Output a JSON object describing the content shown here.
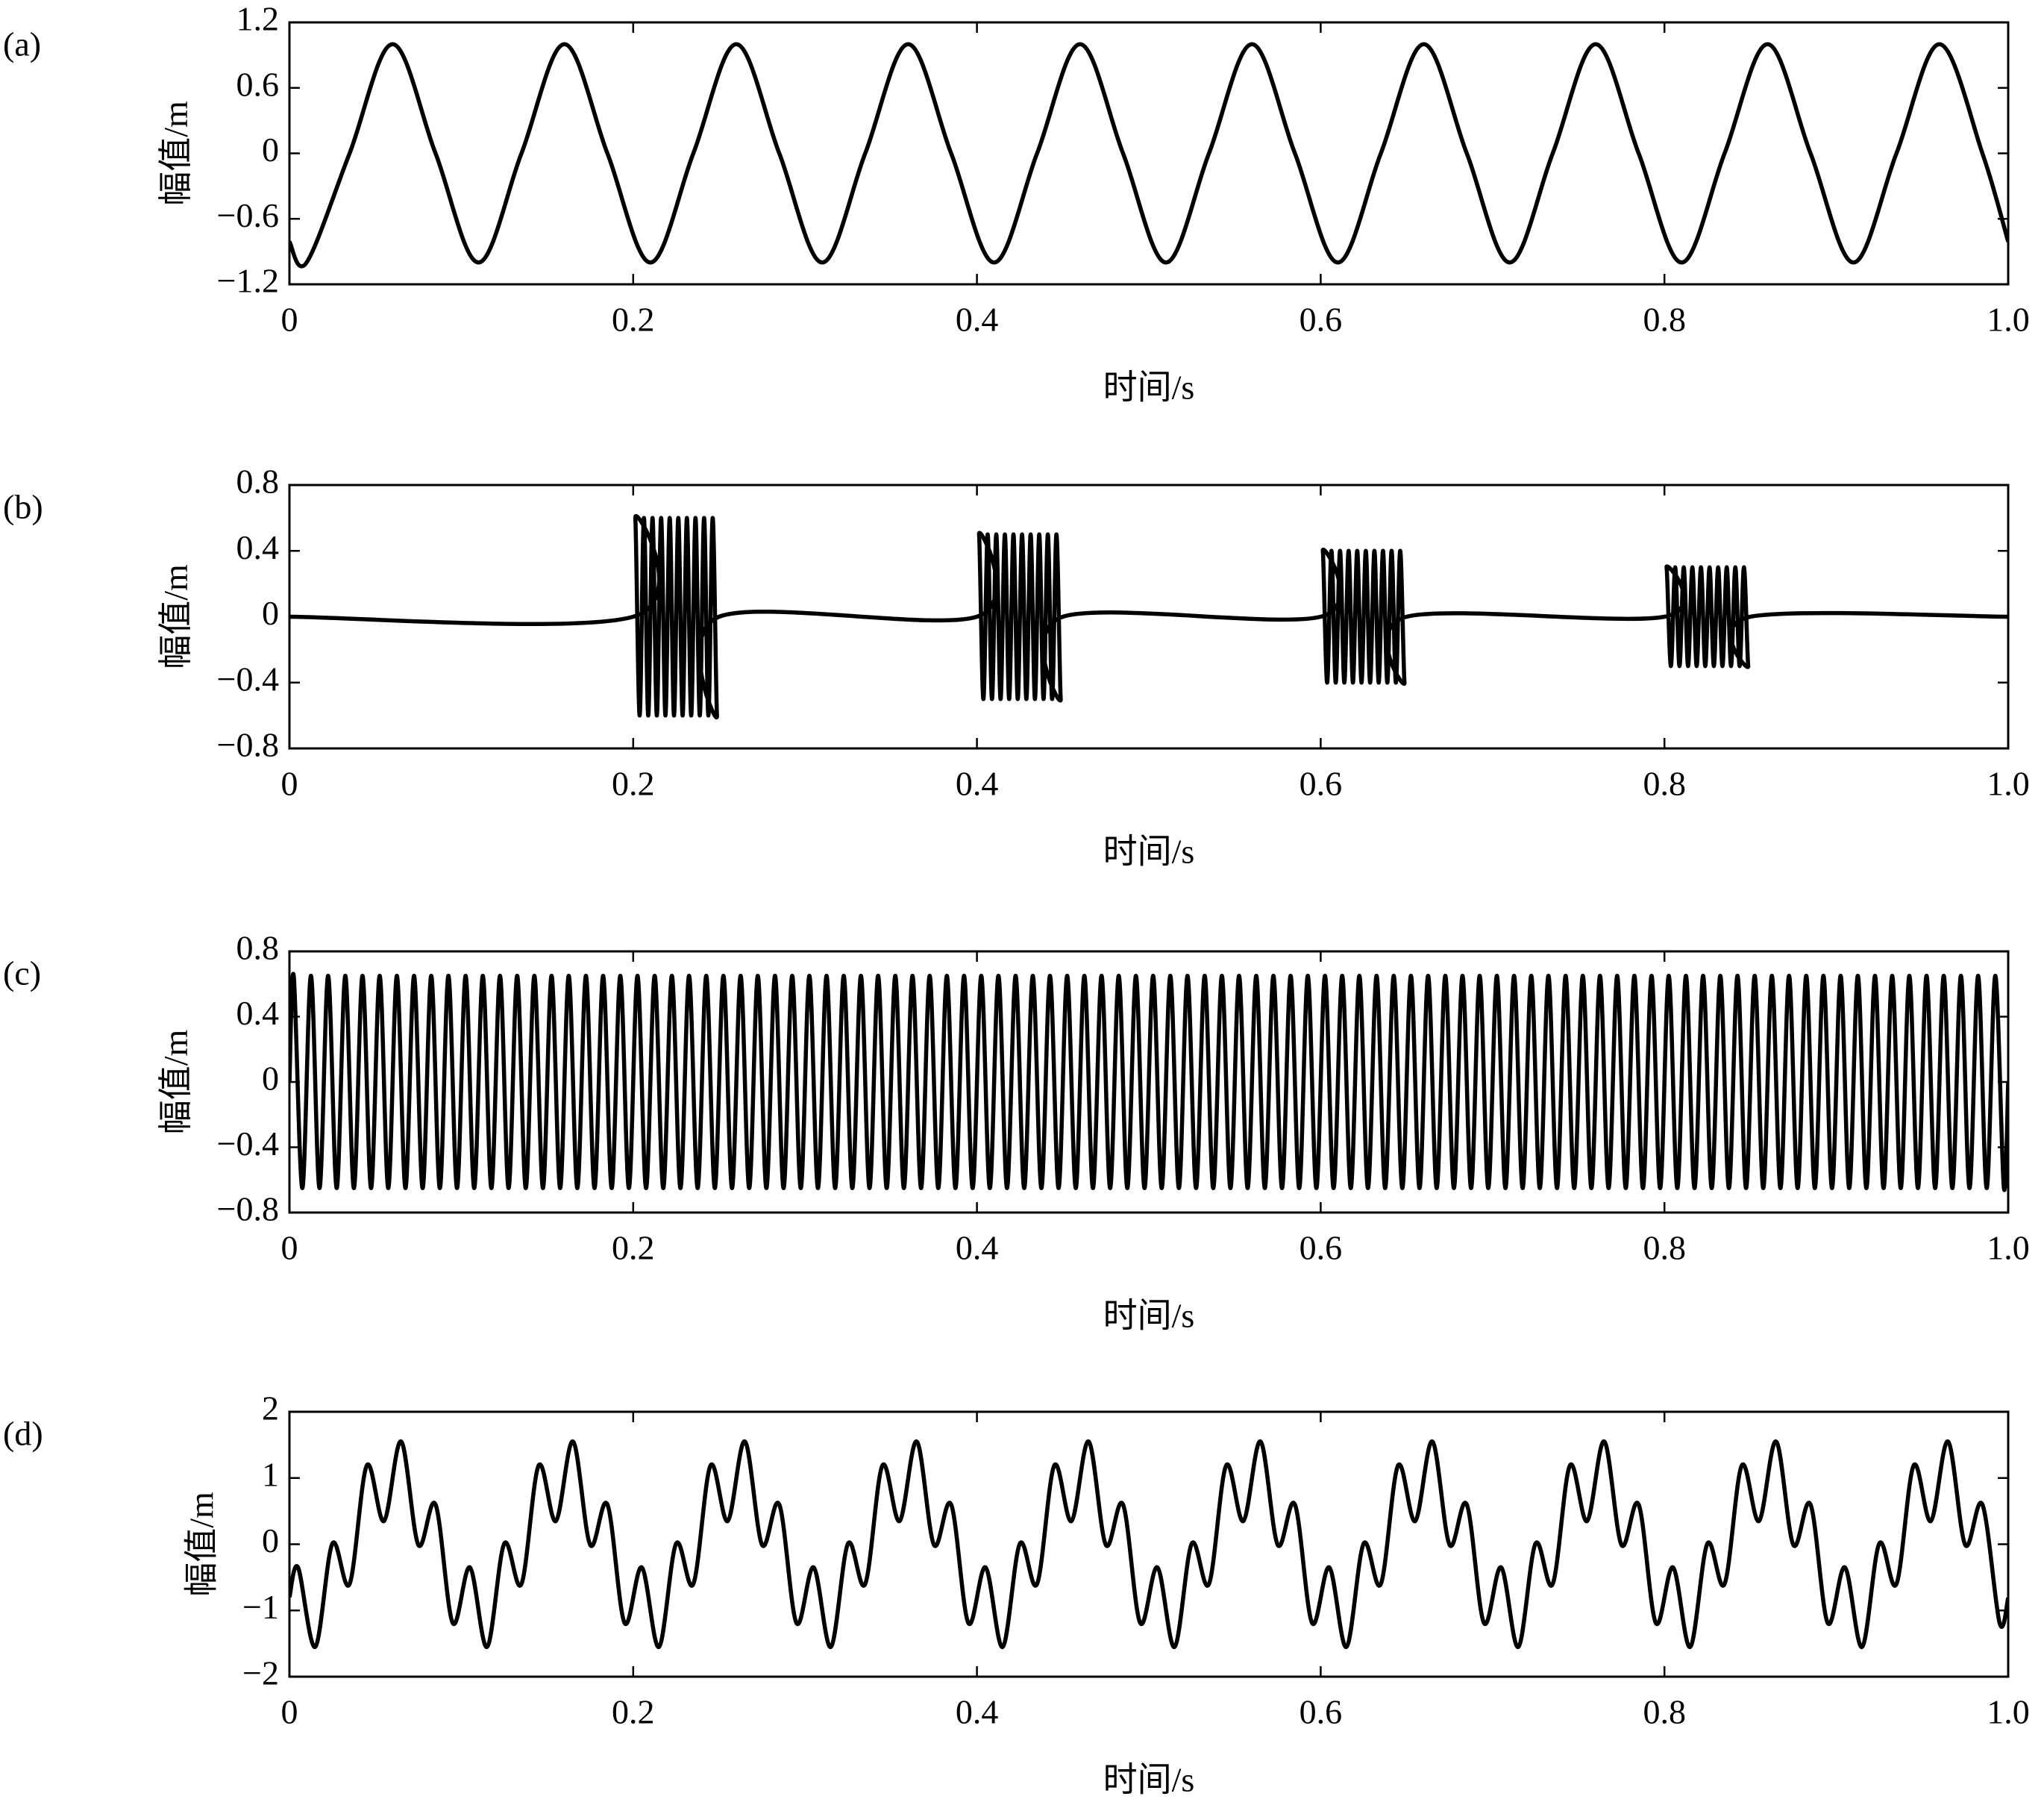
{
  "chart_data": [
    {
      "type": "line",
      "label": "(a)",
      "xlabel": "时间/s",
      "ylabel": "幅值/m",
      "color": "#000000",
      "xlim": [
        0,
        1
      ],
      "xticks": [
        0,
        0.2,
        0.4,
        0.6,
        0.8,
        {
          "value": 1,
          "label": "1.0"
        }
      ],
      "ylim": [
        -1.2,
        1.2
      ],
      "yticks": [
        {
          "value": -1.2,
          "label": "−1.2"
        },
        {
          "value": -0.6,
          "label": "−0.6"
        },
        0,
        0.6,
        1.2
      ],
      "x": [
        0,
        0.01,
        0.035,
        0.06,
        0.085,
        0.11,
        0.135,
        0.16,
        0.185,
        0.21,
        0.235,
        0.26,
        0.285,
        0.31,
        0.335,
        0.36,
        0.385,
        0.41,
        0.435,
        0.46,
        0.485,
        0.51,
        0.535,
        0.56,
        0.585,
        0.61,
        0.635,
        0.66,
        0.685,
        0.71,
        0.735,
        0.76,
        0.785,
        0.81,
        0.835,
        0.86,
        0.885,
        0.91,
        0.935,
        0.96,
        0.985,
        1
      ],
      "values": [
        -0.81,
        -1,
        0,
        1,
        0,
        -1,
        0,
        1,
        0,
        -1,
        0,
        1,
        0,
        -1,
        0,
        1,
        0,
        -1,
        0,
        1,
        0,
        -1,
        0,
        1,
        0,
        -1,
        0,
        1,
        0,
        -1,
        0,
        1,
        0,
        -1,
        0,
        1,
        0,
        -1,
        0,
        1,
        0,
        -0.81
      ]
    },
    {
      "type": "line",
      "label": "(b)",
      "xlabel": "时间/s",
      "ylabel": "幅值/m",
      "color": "#000000",
      "xlim": [
        0,
        1
      ],
      "xticks": [
        0,
        0.2,
        0.4,
        0.6,
        0.8,
        {
          "value": 1,
          "label": "1.0"
        }
      ],
      "ylim": [
        -0.8,
        0.8
      ],
      "yticks": [
        {
          "value": -0.8,
          "label": "−0.8"
        },
        {
          "value": -0.4,
          "label": "−0.4"
        },
        0,
        0.4,
        0.8
      ],
      "x": [
        0,
        0.2,
        0.20125,
        0.20375,
        0.20625,
        0.20875,
        0.21125,
        0.21375,
        0.21625,
        0.21875,
        0.22125,
        0.22375,
        0.22625,
        0.22875,
        0.23125,
        0.23375,
        0.23625,
        0.23875,
        0.24125,
        0.24375,
        0.24625,
        0.24875,
        0.25,
        0.4,
        0.40125,
        0.40375,
        0.40625,
        0.40875,
        0.41125,
        0.41375,
        0.41625,
        0.41875,
        0.42125,
        0.42375,
        0.42625,
        0.42875,
        0.43125,
        0.43375,
        0.43625,
        0.43875,
        0.44125,
        0.44375,
        0.44625,
        0.44875,
        0.45,
        0.6,
        0.60125,
        0.60375,
        0.60625,
        0.60875,
        0.61125,
        0.61375,
        0.61625,
        0.61875,
        0.62125,
        0.62375,
        0.62625,
        0.62875,
        0.63125,
        0.63375,
        0.63625,
        0.63875,
        0.64125,
        0.64375,
        0.64625,
        0.64875,
        0.65,
        0.8,
        0.80125,
        0.80375,
        0.80625,
        0.80875,
        0.81125,
        0.81375,
        0.81625,
        0.81875,
        0.82125,
        0.82375,
        0.82625,
        0.82875,
        0.83125,
        0.83375,
        0.83625,
        0.83875,
        0.84125,
        0.84375,
        0.84625,
        0.84875,
        0.85,
        1
      ],
      "values": [
        0,
        0,
        0.6,
        -0.6,
        0.6,
        -0.6,
        0.6,
        -0.6,
        0.6,
        -0.6,
        0.6,
        -0.6,
        0.6,
        -0.6,
        0.6,
        -0.6,
        0.6,
        -0.6,
        0.6,
        -0.6,
        0.6,
        -0.6,
        0,
        0,
        0.5,
        -0.5,
        0.5,
        -0.5,
        0.5,
        -0.5,
        0.5,
        -0.5,
        0.5,
        -0.5,
        0.5,
        -0.5,
        0.5,
        -0.5,
        0.5,
        -0.5,
        0.5,
        -0.5,
        0.5,
        -0.5,
        0,
        0,
        0.4,
        -0.4,
        0.4,
        -0.4,
        0.4,
        -0.4,
        0.4,
        -0.4,
        0.4,
        -0.4,
        0.4,
        -0.4,
        0.4,
        -0.4,
        0.4,
        -0.4,
        0.4,
        -0.4,
        0.4,
        -0.4,
        0,
        0,
        0.3,
        -0.3,
        0.3,
        -0.3,
        0.3,
        -0.3,
        0.3,
        -0.3,
        0.3,
        -0.3,
        0.3,
        -0.3,
        0.3,
        -0.3,
        0.3,
        -0.3,
        0.3,
        -0.3,
        0.3,
        -0.3,
        0,
        0
      ]
    },
    {
      "type": "line",
      "label": "(c)",
      "xlabel": "时间/s",
      "ylabel": "幅值/m",
      "color": "#000000",
      "xlim": [
        0,
        1
      ],
      "xticks": [
        0,
        0.2,
        0.4,
        0.6,
        0.8,
        {
          "value": 1,
          "label": "1.0"
        }
      ],
      "ylim": [
        -0.8,
        0.8
      ],
      "yticks": [
        {
          "value": -0.8,
          "label": "−0.8"
        },
        {
          "value": -0.4,
          "label": "−0.4"
        },
        0,
        0.4,
        0.8
      ],
      "x": [
        0,
        0.0025,
        0.0075,
        0.0125,
        0.0175,
        0.0225,
        0.0275,
        0.0325,
        0.0375,
        0.0425,
        0.0475,
        0.0525,
        0.0575,
        0.0625,
        0.0675,
        0.0725,
        0.0775,
        0.0825,
        0.0875,
        0.0925,
        0.0975,
        0.1025,
        0.1075,
        0.1125,
        0.1175,
        0.1225,
        0.1275,
        0.1325,
        0.1375,
        0.1425,
        0.1475,
        0.1525,
        0.1575,
        0.1625,
        0.1675,
        0.1725,
        0.1775,
        0.1825,
        0.1875,
        0.1925,
        0.1975,
        0.2025,
        0.2075,
        0.2125,
        0.2175,
        0.2225,
        0.2275,
        0.2325,
        0.2375,
        0.2425,
        0.2475,
        0.2525,
        0.2575,
        0.2625,
        0.2675,
        0.2725,
        0.2775,
        0.2825,
        0.2875,
        0.2925,
        0.2975,
        0.3025,
        0.3075,
        0.3125,
        0.3175,
        0.3225,
        0.3275,
        0.3325,
        0.3375,
        0.3425,
        0.3475,
        0.3525,
        0.3575,
        0.3625,
        0.3675,
        0.3725,
        0.3775,
        0.3825,
        0.3875,
        0.3925,
        0.3975,
        0.4025,
        0.4075,
        0.4125,
        0.4175,
        0.4225,
        0.4275,
        0.4325,
        0.4375,
        0.4425,
        0.4475,
        0.4525,
        0.4575,
        0.4625,
        0.4675,
        0.4725,
        0.4775,
        0.4825,
        0.4875,
        0.4925,
        0.4975,
        0.5025,
        0.5075,
        0.5125,
        0.5175,
        0.5225,
        0.5275,
        0.5325,
        0.5375,
        0.5425,
        0.5475,
        0.5525,
        0.5575,
        0.5625,
        0.5675,
        0.5725,
        0.5775,
        0.5825,
        0.5875,
        0.5925,
        0.5975,
        0.6025,
        0.6075,
        0.6125,
        0.6175,
        0.6225,
        0.6275,
        0.6325,
        0.6375,
        0.6425,
        0.6475,
        0.6525,
        0.6575,
        0.6625,
        0.6675,
        0.6725,
        0.6775,
        0.6825,
        0.6875,
        0.6925,
        0.6975,
        0.7025,
        0.7075,
        0.7125,
        0.7175,
        0.7225,
        0.7275,
        0.7325,
        0.7375,
        0.7425,
        0.7475,
        0.7525,
        0.7575,
        0.7625,
        0.7675,
        0.7725,
        0.7775,
        0.7825,
        0.7875,
        0.7925,
        0.7975,
        0.8025,
        0.8075,
        0.8125,
        0.8175,
        0.8225,
        0.8275,
        0.8325,
        0.8375,
        0.8425,
        0.8475,
        0.8525,
        0.8575,
        0.8625,
        0.8675,
        0.8725,
        0.8775,
        0.8825,
        0.8875,
        0.8925,
        0.8975,
        0.9025,
        0.9075,
        0.9125,
        0.9175,
        0.9225,
        0.9275,
        0.9325,
        0.9375,
        0.9425,
        0.9475,
        0.9525,
        0.9575,
        0.9625,
        0.9675,
        0.9725,
        0.9775,
        0.9825,
        0.9875,
        0.9925,
        0.9975,
        1
      ],
      "values": [
        0,
        0.65,
        -0.65,
        0.65,
        -0.65,
        0.65,
        -0.65,
        0.65,
        -0.65,
        0.65,
        -0.65,
        0.65,
        -0.65,
        0.65,
        -0.65,
        0.65,
        -0.65,
        0.65,
        -0.65,
        0.65,
        -0.65,
        0.65,
        -0.65,
        0.65,
        -0.65,
        0.65,
        -0.65,
        0.65,
        -0.65,
        0.65,
        -0.65,
        0.65,
        -0.65,
        0.65,
        -0.65,
        0.65,
        -0.65,
        0.65,
        -0.65,
        0.65,
        -0.65,
        0.65,
        -0.65,
        0.65,
        -0.65,
        0.65,
        -0.65,
        0.65,
        -0.65,
        0.65,
        -0.65,
        0.65,
        -0.65,
        0.65,
        -0.65,
        0.65,
        -0.65,
        0.65,
        -0.65,
        0.65,
        -0.65,
        0.65,
        -0.65,
        0.65,
        -0.65,
        0.65,
        -0.65,
        0.65,
        -0.65,
        0.65,
        -0.65,
        0.65,
        -0.65,
        0.65,
        -0.65,
        0.65,
        -0.65,
        0.65,
        -0.65,
        0.65,
        -0.65,
        0.65,
        -0.65,
        0.65,
        -0.65,
        0.65,
        -0.65,
        0.65,
        -0.65,
        0.65,
        -0.65,
        0.65,
        -0.65,
        0.65,
        -0.65,
        0.65,
        -0.65,
        0.65,
        -0.65,
        0.65,
        -0.65,
        0.65,
        -0.65,
        0.65,
        -0.65,
        0.65,
        -0.65,
        0.65,
        -0.65,
        0.65,
        -0.65,
        0.65,
        -0.65,
        0.65,
        -0.65,
        0.65,
        -0.65,
        0.65,
        -0.65,
        0.65,
        -0.65,
        0.65,
        -0.65,
        0.65,
        -0.65,
        0.65,
        -0.65,
        0.65,
        -0.65,
        0.65,
        -0.65,
        0.65,
        -0.65,
        0.65,
        -0.65,
        0.65,
        -0.65,
        0.65,
        -0.65,
        0.65,
        -0.65,
        0.65,
        -0.65,
        0.65,
        -0.65,
        0.65,
        -0.65,
        0.65,
        -0.65,
        0.65,
        -0.65,
        0.65,
        -0.65,
        0.65,
        -0.65,
        0.65,
        -0.65,
        0.65,
        -0.65,
        0.65,
        -0.65,
        0.65,
        -0.65,
        0.65,
        -0.65,
        0.65,
        -0.65,
        0.65,
        -0.65,
        0.65,
        -0.65,
        0.65,
        -0.65,
        0.65,
        -0.65,
        0.65,
        -0.65,
        0.65,
        -0.65,
        0.65,
        -0.65,
        0.65,
        -0.65,
        0.65,
        -0.65,
        0.65,
        -0.65,
        0.65,
        -0.65,
        0.65,
        -0.65,
        0.65,
        -0.65,
        0.65,
        -0.65,
        0.65,
        -0.65,
        0.65,
        -0.65,
        0.65,
        -0.65,
        0
      ]
    },
    {
      "type": "line",
      "label": "(d)",
      "xlabel": "时间/s",
      "ylabel": "幅值/m",
      "color": "#000000",
      "xlim": [
        0,
        1
      ],
      "xticks": [
        0,
        0.2,
        0.4,
        0.6,
        0.8,
        {
          "value": 1,
          "label": "1.0"
        }
      ],
      "ylim": [
        -2,
        2
      ],
      "yticks": [
        {
          "value": -2,
          "label": "−2"
        },
        {
          "value": -1,
          "label": "−1"
        },
        0,
        1,
        2
      ],
      "x": [
        0,
        0.005,
        0.015,
        0.025,
        0.035,
        0.045,
        0.055,
        0.065,
        0.075,
        0.085,
        0.095,
        0.105,
        0.115,
        0.125,
        0.135,
        0.145,
        0.155,
        0.165,
        0.175,
        0.185,
        0.195,
        0.205,
        0.215,
        0.225,
        0.235,
        0.245,
        0.255,
        0.265,
        0.275,
        0.285,
        0.295,
        0.305,
        0.315,
        0.325,
        0.335,
        0.345,
        0.355,
        0.365,
        0.375,
        0.385,
        0.395,
        0.405,
        0.415,
        0.425,
        0.435,
        0.445,
        0.455,
        0.465,
        0.475,
        0.485,
        0.495,
        0.505,
        0.515,
        0.525,
        0.535,
        0.545,
        0.555,
        0.565,
        0.575,
        0.585,
        0.595,
        0.605,
        0.615,
        0.625,
        0.635,
        0.645,
        0.655,
        0.665,
        0.675,
        0.685,
        0.695,
        0.705,
        0.715,
        0.725,
        0.735,
        0.745,
        0.755,
        0.765,
        0.775,
        0.785,
        0.795,
        0.805,
        0.815,
        0.825,
        0.835,
        0.845,
        0.855,
        0.865,
        0.875,
        0.885,
        0.895,
        0.905,
        0.915,
        0.925,
        0.935,
        0.945,
        0.955,
        0.965,
        0.975,
        0.985,
        0.995,
        1
      ],
      "values": [
        -0.8,
        -0.35,
        -1.55,
        0.01,
        -0.6,
        1.19,
        0.35,
        1.55,
        -0.01,
        0.6,
        -1.19,
        -0.35,
        -1.55,
        0.01,
        -0.6,
        1.19,
        0.35,
        1.55,
        -0.01,
        0.6,
        -1.19,
        -0.35,
        -1.55,
        0.01,
        -0.6,
        1.19,
        0.35,
        1.55,
        -0.01,
        0.6,
        -1.19,
        -0.35,
        -1.55,
        0.01,
        -0.6,
        1.19,
        0.35,
        1.55,
        -0.01,
        0.6,
        -1.19,
        -0.35,
        -1.55,
        0.01,
        -0.6,
        1.19,
        0.35,
        1.55,
        -0.01,
        0.6,
        -1.19,
        -0.35,
        -1.55,
        0.01,
        -0.6,
        1.19,
        0.35,
        1.55,
        -0.01,
        0.6,
        -1.19,
        -0.35,
        -1.55,
        0.01,
        -0.6,
        1.19,
        0.35,
        1.55,
        -0.01,
        0.6,
        -1.19,
        -0.35,
        -1.55,
        0.01,
        -0.6,
        1.19,
        0.35,
        1.55,
        -0.01,
        0.6,
        -1.19,
        -0.35,
        -1.55,
        0.01,
        -0.6,
        1.19,
        0.35,
        1.55,
        -0.01,
        0.6,
        -1.19,
        -0.35,
        -1.55,
        0.01,
        -0.6,
        1.19,
        0.35,
        1.55,
        -0.01,
        0.6,
        -1.19,
        -0.81
      ]
    }
  ]
}
